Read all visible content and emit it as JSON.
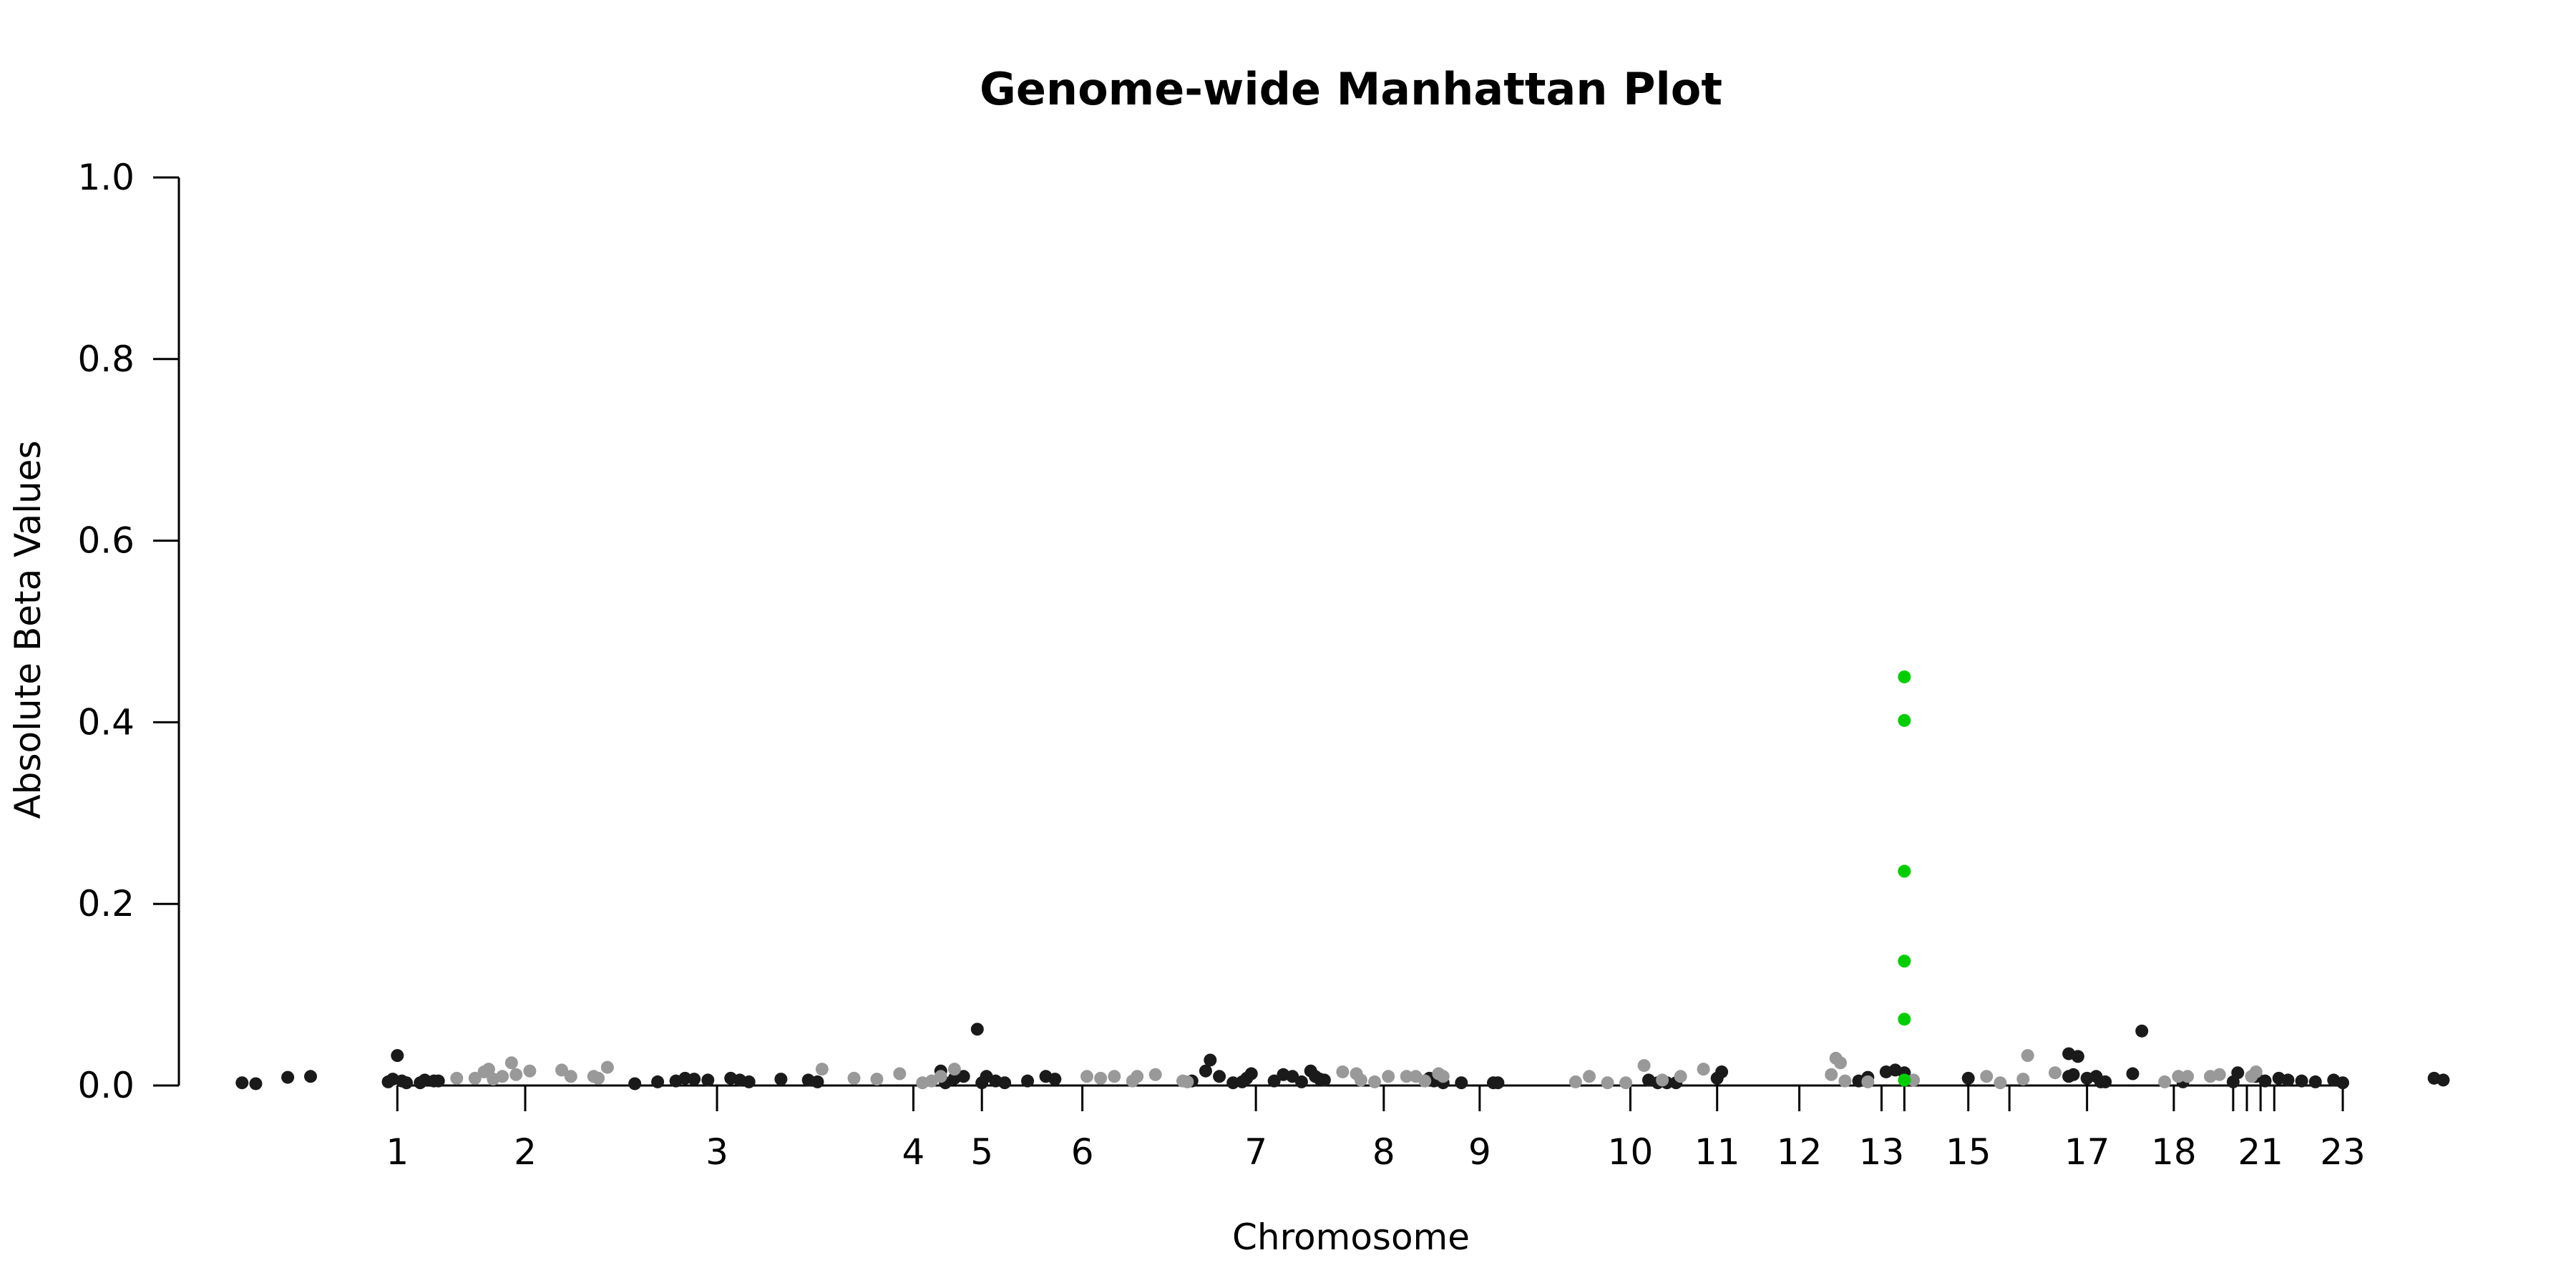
{
  "chart_data": {
    "type": "scatter",
    "title": "Genome-wide Manhattan Plot",
    "xlabel": "Chromosome",
    "ylabel": "Absolute Beta Values",
    "ylim": [
      0,
      1.0
    ],
    "y_ticks": [
      "0.0",
      "0.2",
      "0.4",
      "0.6",
      "0.8",
      "1.0"
    ],
    "y_tick_values": [
      0,
      0.2,
      0.4,
      0.6,
      0.8,
      1.0
    ],
    "x_ticks": [
      {
        "label": "1",
        "pos": 2.0
      },
      {
        "label": "2",
        "pos": 3.4
      },
      {
        "label": "3",
        "pos": 5.5
      },
      {
        "label": "4",
        "pos": 7.65
      },
      {
        "label": "5",
        "pos": 8.4
      },
      {
        "label": "6",
        "pos": 9.5
      },
      {
        "label": "7",
        "pos": 11.4
      },
      {
        "label": "8",
        "pos": 12.8
      },
      {
        "label": "9",
        "pos": 13.85
      },
      {
        "label": "10",
        "pos": 15.5
      },
      {
        "label": "11",
        "pos": 16.45
      },
      {
        "label": "12",
        "pos": 17.35
      },
      {
        "label": "13",
        "pos": 18.25
      },
      {
        "label": "",
        "pos": 18.5
      },
      {
        "label": "15",
        "pos": 19.2
      },
      {
        "label": "",
        "pos": 19.65
      },
      {
        "label": "17",
        "pos": 20.5
      },
      {
        "label": "18",
        "pos": 21.45
      },
      {
        "label": "",
        "pos": 22.1
      },
      {
        "label": "",
        "pos": 22.25
      },
      {
        "label": "21",
        "pos": 22.4
      },
      {
        "label": "",
        "pos": 22.55
      },
      {
        "label": "23",
        "pos": 23.3
      }
    ],
    "xlim": [
      0,
      24.6
    ],
    "grid": false,
    "colors": {
      "odd": "#1a1a1a",
      "even": "#999999",
      "highlight": "#00cc00"
    },
    "series": [
      {
        "color": "odd",
        "points": [
          [
            0.3,
            0.003
          ],
          [
            0.45,
            0.002
          ],
          [
            0.8,
            0.009
          ],
          [
            1.05,
            0.01
          ],
          [
            1.9,
            0.004
          ],
          [
            1.95,
            0.007
          ],
          [
            2.0,
            0.033
          ],
          [
            2.05,
            0.005
          ],
          [
            2.1,
            0.003
          ],
          [
            2.25,
            0.003
          ],
          [
            2.3,
            0.006
          ],
          [
            2.4,
            0.005
          ],
          [
            2.45,
            0.005
          ],
          [
            4.6,
            0.002
          ],
          [
            4.85,
            0.004
          ],
          [
            5.05,
            0.005
          ],
          [
            5.15,
            0.008
          ],
          [
            5.25,
            0.007
          ],
          [
            5.4,
            0.006
          ],
          [
            5.65,
            0.008
          ],
          [
            5.75,
            0.006
          ],
          [
            5.85,
            0.004
          ],
          [
            6.2,
            0.007
          ],
          [
            6.5,
            0.006
          ],
          [
            6.6,
            0.004
          ],
          [
            7.95,
            0.016
          ],
          [
            8.0,
            0.003
          ],
          [
            8.1,
            0.008
          ],
          [
            8.2,
            0.01
          ],
          [
            8.35,
            0.062
          ],
          [
            8.4,
            0.003
          ],
          [
            8.45,
            0.01
          ],
          [
            8.55,
            0.005
          ],
          [
            8.65,
            0.003
          ],
          [
            8.9,
            0.005
          ],
          [
            9.1,
            0.01
          ],
          [
            9.2,
            0.007
          ],
          [
            10.85,
            0.016
          ],
          [
            10.9,
            0.028
          ],
          [
            11.0,
            0.01
          ],
          [
            10.7,
            0.005
          ],
          [
            11.25,
            0.004
          ],
          [
            11.3,
            0.008
          ],
          [
            11.35,
            0.013
          ],
          [
            11.15,
            0.003
          ],
          [
            11.6,
            0.005
          ],
          [
            11.7,
            0.012
          ],
          [
            11.8,
            0.01
          ],
          [
            11.9,
            0.004
          ],
          [
            12.0,
            0.016
          ],
          [
            12.05,
            0.01
          ],
          [
            12.1,
            0.007
          ],
          [
            12.15,
            0.006
          ],
          [
            13.3,
            0.008
          ],
          [
            13.35,
            0.005
          ],
          [
            13.45,
            0.003
          ],
          [
            13.65,
            0.003
          ],
          [
            14.0,
            0.003
          ],
          [
            14.05,
            0.003
          ],
          [
            15.7,
            0.006
          ],
          [
            15.8,
            0.003
          ],
          [
            15.9,
            0.003
          ],
          [
            16.0,
            0.003
          ],
          [
            16.45,
            0.008
          ],
          [
            16.5,
            0.015
          ],
          [
            18.0,
            0.005
          ],
          [
            18.1,
            0.009
          ],
          [
            18.3,
            0.015
          ],
          [
            18.4,
            0.017
          ],
          [
            18.5,
            0.014
          ],
          [
            19.2,
            0.008
          ],
          [
            20.3,
            0.035
          ],
          [
            20.4,
            0.032
          ],
          [
            20.3,
            0.01
          ],
          [
            20.35,
            0.012
          ],
          [
            20.5,
            0.008
          ],
          [
            20.6,
            0.01
          ],
          [
            20.65,
            0.004
          ],
          [
            20.7,
            0.004
          ],
          [
            21.0,
            0.013
          ],
          [
            21.1,
            0.06
          ],
          [
            21.55,
            0.004
          ],
          [
            22.1,
            0.004
          ],
          [
            22.15,
            0.014
          ],
          [
            22.35,
            0.01
          ],
          [
            22.45,
            0.005
          ],
          [
            22.6,
            0.008
          ],
          [
            22.7,
            0.006
          ],
          [
            22.85,
            0.005
          ],
          [
            23.0,
            0.004
          ],
          [
            23.2,
            0.006
          ],
          [
            23.3,
            0.003
          ],
          [
            24.3,
            0.008
          ],
          [
            24.4,
            0.006
          ]
        ]
      },
      {
        "color": "even",
        "points": [
          [
            2.65,
            0.008
          ],
          [
            2.85,
            0.008
          ],
          [
            2.95,
            0.015
          ],
          [
            3.0,
            0.018
          ],
          [
            3.05,
            0.007
          ],
          [
            3.15,
            0.01
          ],
          [
            3.25,
            0.025
          ],
          [
            3.3,
            0.012
          ],
          [
            3.45,
            0.016
          ],
          [
            3.8,
            0.017
          ],
          [
            3.9,
            0.01
          ],
          [
            4.15,
            0.01
          ],
          [
            4.2,
            0.008
          ],
          [
            4.3,
            0.02
          ],
          [
            6.65,
            0.018
          ],
          [
            7.0,
            0.008
          ],
          [
            7.25,
            0.007
          ],
          [
            7.5,
            0.013
          ],
          [
            7.75,
            0.003
          ],
          [
            7.85,
            0.005
          ],
          [
            7.95,
            0.01
          ],
          [
            8.1,
            0.018
          ],
          [
            9.55,
            0.01
          ],
          [
            9.7,
            0.008
          ],
          [
            9.85,
            0.01
          ],
          [
            10.05,
            0.005
          ],
          [
            10.1,
            0.01
          ],
          [
            10.3,
            0.012
          ],
          [
            10.6,
            0.005
          ],
          [
            10.65,
            0.004
          ],
          [
            12.35,
            0.015
          ],
          [
            12.5,
            0.013
          ],
          [
            12.55,
            0.006
          ],
          [
            12.7,
            0.004
          ],
          [
            12.85,
            0.01
          ],
          [
            13.15,
            0.01
          ],
          [
            13.05,
            0.01
          ],
          [
            13.25,
            0.005
          ],
          [
            13.4,
            0.013
          ],
          [
            13.45,
            0.01
          ],
          [
            14.9,
            0.004
          ],
          [
            15.05,
            0.01
          ],
          [
            15.25,
            0.003
          ],
          [
            15.45,
            0.003
          ],
          [
            15.65,
            0.022
          ],
          [
            15.85,
            0.006
          ],
          [
            16.05,
            0.01
          ],
          [
            16.3,
            0.018
          ],
          [
            17.75,
            0.03
          ],
          [
            17.7,
            0.012
          ],
          [
            17.85,
            0.005
          ],
          [
            17.8,
            0.025
          ],
          [
            18.1,
            0.004
          ],
          [
            18.6,
            0.006
          ],
          [
            19.4,
            0.01
          ],
          [
            19.55,
            0.003
          ],
          [
            19.8,
            0.007
          ],
          [
            19.85,
            0.033
          ],
          [
            20.15,
            0.014
          ],
          [
            21.35,
            0.004
          ],
          [
            21.5,
            0.01
          ],
          [
            21.6,
            0.01
          ],
          [
            21.85,
            0.01
          ],
          [
            21.95,
            0.012
          ],
          [
            22.3,
            0.01
          ],
          [
            22.35,
            0.015
          ]
        ]
      },
      {
        "color": "highlight",
        "points": [
          [
            18.5,
            0.45
          ],
          [
            18.5,
            0.402
          ],
          [
            18.5,
            0.236
          ],
          [
            18.5,
            0.137
          ],
          [
            18.5,
            0.073
          ],
          [
            18.5,
            0.006
          ]
        ]
      }
    ]
  }
}
